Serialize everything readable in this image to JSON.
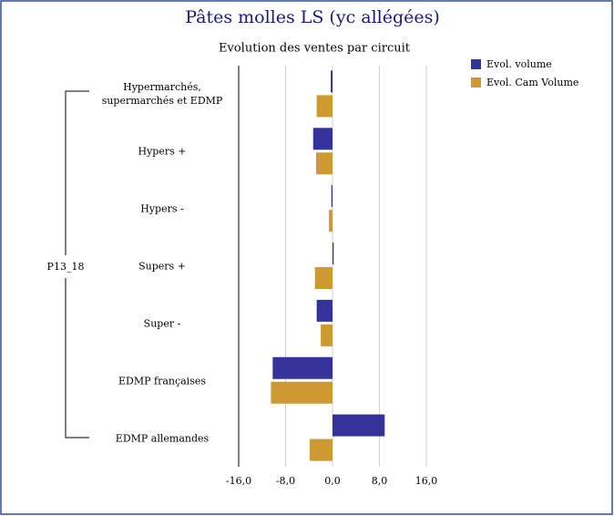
{
  "chart_data": {
    "type": "bar",
    "orientation": "horizontal",
    "title": "Pâtes molles LS (yc allégées)",
    "subtitle": "Evolution des ventes par circuit",
    "group_label": "P13_18",
    "categories": [
      "Hypermarchés, supermarchés et EDMP",
      "Hypers +",
      "Hypers -",
      "Supers +",
      "Super -",
      "EDMP françaises",
      "EDMP allemandes"
    ],
    "series": [
      {
        "name": "Evol. volume",
        "color": "#333399",
        "values": [
          -0.3,
          -3.3,
          -0.2,
          0.2,
          -2.7,
          -10.2,
          8.9
        ]
      },
      {
        "name": "Evol. Cam Volume",
        "color": "#cc9933",
        "values": [
          -2.7,
          -2.8,
          -0.6,
          -3.0,
          -2.0,
          -10.5,
          -3.9
        ]
      }
    ],
    "xlim": [
      -16,
      16
    ],
    "xticks": [
      {
        "value": -16,
        "label": "-16,0"
      },
      {
        "value": -8,
        "label": "-8,0"
      },
      {
        "value": 0,
        "label": "0,0"
      },
      {
        "value": 8,
        "label": "8,0"
      },
      {
        "value": 16,
        "label": "16,0"
      }
    ],
    "grid": true,
    "legend": "top-right"
  }
}
